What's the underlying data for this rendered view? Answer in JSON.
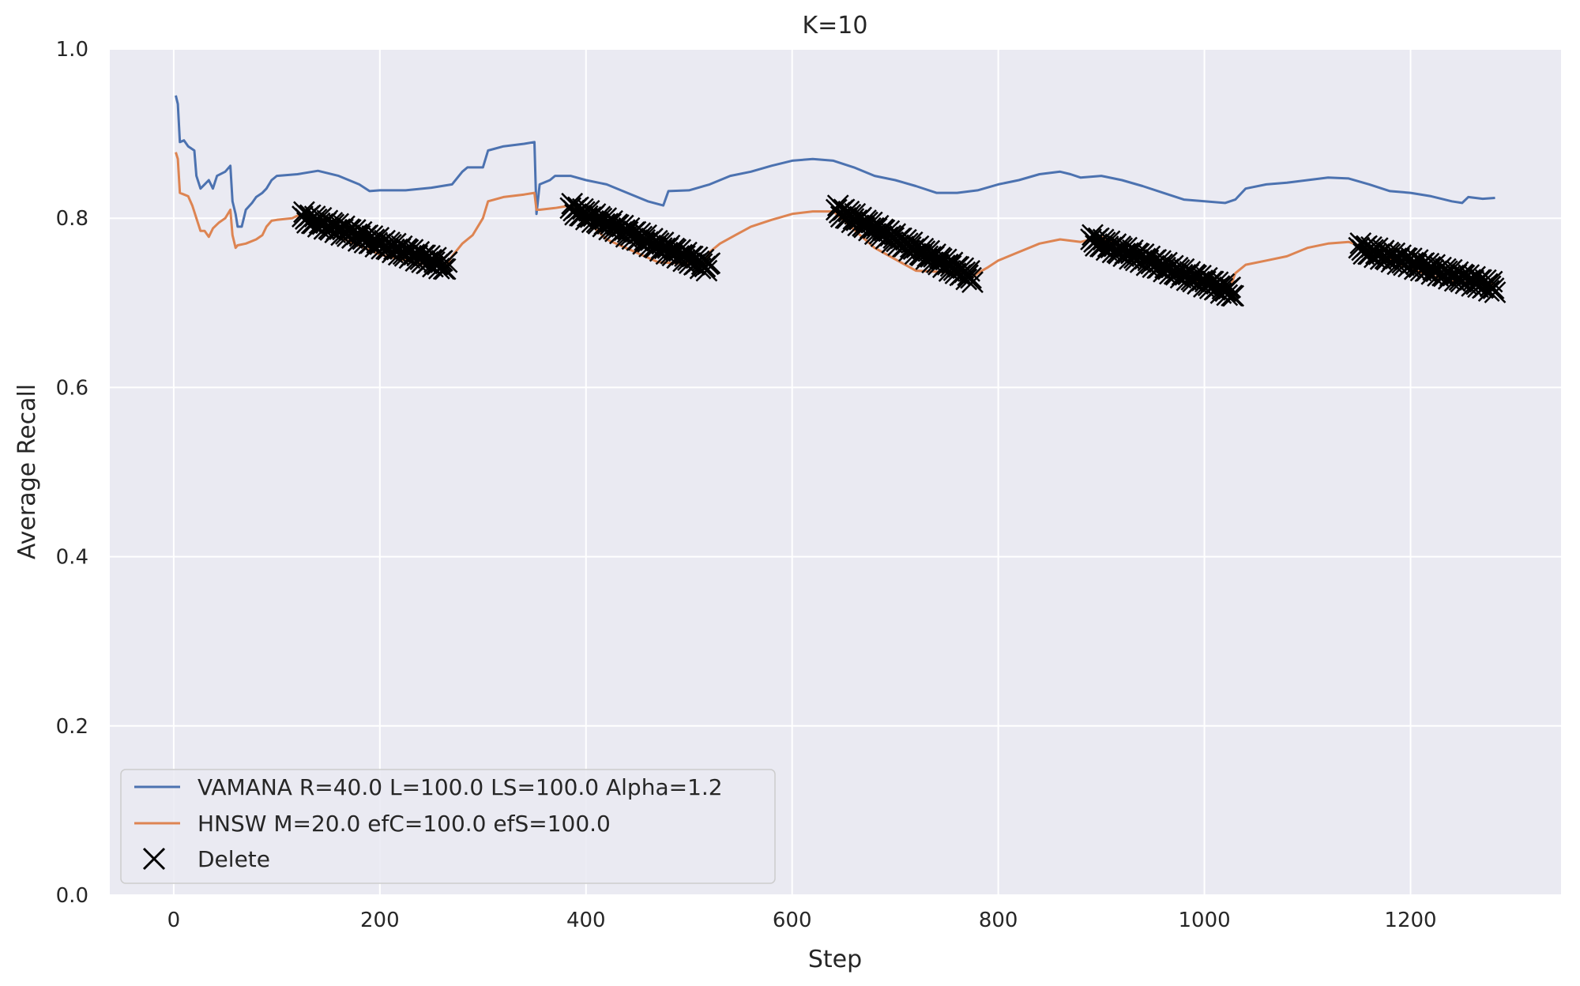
{
  "chart_data": {
    "type": "line",
    "title": "K=10",
    "xlabel": "Step",
    "ylabel": "Average Recall",
    "xlim": [
      -62,
      1346
    ],
    "ylim": [
      0.0,
      1.0
    ],
    "xticks": [
      0,
      200,
      400,
      600,
      800,
      1000,
      1200
    ],
    "yticks": [
      0.0,
      0.2,
      0.4,
      0.6,
      0.8,
      1.0
    ],
    "xtick_labels": [
      "0",
      "200",
      "400",
      "600",
      "800",
      "1000",
      "1200"
    ],
    "ytick_labels": [
      "0.0",
      "0.2",
      "0.4",
      "0.6",
      "0.8",
      "1.0"
    ],
    "grid": true,
    "background": "#eaeaf2",
    "legend_position": "lower-left",
    "series": [
      {
        "name": "VAMANA R=40.0 L=100.0 LS=100.0 Alpha=1.2",
        "color": "#4c72b0",
        "points": [
          [
            2,
            0.945
          ],
          [
            4,
            0.935
          ],
          [
            6,
            0.89
          ],
          [
            10,
            0.892
          ],
          [
            14,
            0.885
          ],
          [
            20,
            0.88
          ],
          [
            22,
            0.85
          ],
          [
            26,
            0.835
          ],
          [
            30,
            0.84
          ],
          [
            34,
            0.845
          ],
          [
            38,
            0.835
          ],
          [
            42,
            0.85
          ],
          [
            50,
            0.855
          ],
          [
            55,
            0.862
          ],
          [
            57,
            0.82
          ],
          [
            60,
            0.805
          ],
          [
            62,
            0.79
          ],
          [
            66,
            0.79
          ],
          [
            70,
            0.81
          ],
          [
            76,
            0.818
          ],
          [
            80,
            0.825
          ],
          [
            86,
            0.83
          ],
          [
            90,
            0.835
          ],
          [
            95,
            0.845
          ],
          [
            100,
            0.85
          ],
          [
            120,
            0.852
          ],
          [
            140,
            0.856
          ],
          [
            160,
            0.85
          ],
          [
            180,
            0.84
          ],
          [
            190,
            0.832
          ],
          [
            200,
            0.833
          ],
          [
            225,
            0.833
          ],
          [
            250,
            0.836
          ],
          [
            270,
            0.84
          ],
          [
            280,
            0.855
          ],
          [
            285,
            0.86
          ],
          [
            300,
            0.86
          ],
          [
            305,
            0.88
          ],
          [
            320,
            0.885
          ],
          [
            340,
            0.888
          ],
          [
            350,
            0.89
          ],
          [
            352,
            0.805
          ],
          [
            355,
            0.84
          ],
          [
            365,
            0.845
          ],
          [
            370,
            0.85
          ],
          [
            385,
            0.85
          ],
          [
            400,
            0.845
          ],
          [
            420,
            0.84
          ],
          [
            440,
            0.83
          ],
          [
            460,
            0.82
          ],
          [
            475,
            0.815
          ],
          [
            480,
            0.832
          ],
          [
            500,
            0.833
          ],
          [
            520,
            0.84
          ],
          [
            540,
            0.85
          ],
          [
            560,
            0.855
          ],
          [
            580,
            0.862
          ],
          [
            600,
            0.868
          ],
          [
            620,
            0.87
          ],
          [
            640,
            0.868
          ],
          [
            660,
            0.86
          ],
          [
            680,
            0.85
          ],
          [
            700,
            0.845
          ],
          [
            720,
            0.838
          ],
          [
            740,
            0.83
          ],
          [
            760,
            0.83
          ],
          [
            780,
            0.833
          ],
          [
            800,
            0.84
          ],
          [
            820,
            0.845
          ],
          [
            840,
            0.852
          ],
          [
            860,
            0.855
          ],
          [
            870,
            0.852
          ],
          [
            880,
            0.848
          ],
          [
            900,
            0.85
          ],
          [
            920,
            0.845
          ],
          [
            940,
            0.838
          ],
          [
            960,
            0.83
          ],
          [
            980,
            0.822
          ],
          [
            1000,
            0.82
          ],
          [
            1020,
            0.818
          ],
          [
            1030,
            0.822
          ],
          [
            1040,
            0.835
          ],
          [
            1060,
            0.84
          ],
          [
            1080,
            0.842
          ],
          [
            1100,
            0.845
          ],
          [
            1120,
            0.848
          ],
          [
            1140,
            0.847
          ],
          [
            1160,
            0.84
          ],
          [
            1180,
            0.832
          ],
          [
            1200,
            0.83
          ],
          [
            1220,
            0.826
          ],
          [
            1240,
            0.82
          ],
          [
            1250,
            0.818
          ],
          [
            1256,
            0.825
          ],
          [
            1270,
            0.823
          ],
          [
            1282,
            0.824
          ]
        ]
      },
      {
        "name": "HNSW M=20.0 efC=100.0 efS=100.0",
        "color": "#dd8452",
        "points": [
          [
            2,
            0.878
          ],
          [
            4,
            0.87
          ],
          [
            6,
            0.83
          ],
          [
            10,
            0.828
          ],
          [
            14,
            0.826
          ],
          [
            18,
            0.815
          ],
          [
            22,
            0.8
          ],
          [
            26,
            0.785
          ],
          [
            30,
            0.785
          ],
          [
            34,
            0.778
          ],
          [
            38,
            0.788
          ],
          [
            44,
            0.795
          ],
          [
            50,
            0.8
          ],
          [
            55,
            0.81
          ],
          [
            57,
            0.78
          ],
          [
            60,
            0.765
          ],
          [
            62,
            0.768
          ],
          [
            70,
            0.77
          ],
          [
            80,
            0.775
          ],
          [
            86,
            0.78
          ],
          [
            90,
            0.79
          ],
          [
            95,
            0.797
          ],
          [
            100,
            0.798
          ],
          [
            115,
            0.8
          ],
          [
            120,
            0.803
          ],
          [
            130,
            0.805
          ],
          [
            160,
            0.778
          ],
          [
            200,
            0.757
          ],
          [
            240,
            0.746
          ],
          [
            265,
            0.746
          ],
          [
            270,
            0.755
          ],
          [
            280,
            0.77
          ],
          [
            290,
            0.78
          ],
          [
            300,
            0.8
          ],
          [
            305,
            0.82
          ],
          [
            320,
            0.825
          ],
          [
            340,
            0.828
          ],
          [
            350,
            0.83
          ],
          [
            352,
            0.81
          ],
          [
            355,
            0.81
          ],
          [
            370,
            0.812
          ],
          [
            385,
            0.815
          ],
          [
            420,
            0.775
          ],
          [
            470,
            0.748
          ],
          [
            515,
            0.745
          ],
          [
            520,
            0.76
          ],
          [
            530,
            0.77
          ],
          [
            545,
            0.78
          ],
          [
            560,
            0.79
          ],
          [
            580,
            0.798
          ],
          [
            600,
            0.805
          ],
          [
            620,
            0.808
          ],
          [
            640,
            0.808
          ],
          [
            680,
            0.765
          ],
          [
            720,
            0.738
          ],
          [
            770,
            0.735
          ],
          [
            775,
            0.73
          ],
          [
            780,
            0.735
          ],
          [
            790,
            0.742
          ],
          [
            800,
            0.75
          ],
          [
            820,
            0.76
          ],
          [
            840,
            0.77
          ],
          [
            860,
            0.775
          ],
          [
            880,
            0.772
          ],
          [
            900,
            0.778
          ],
          [
            950,
            0.745
          ],
          [
            1000,
            0.722
          ],
          [
            1025,
            0.718
          ],
          [
            1030,
            0.735
          ],
          [
            1040,
            0.745
          ],
          [
            1060,
            0.75
          ],
          [
            1080,
            0.755
          ],
          [
            1100,
            0.765
          ],
          [
            1120,
            0.77
          ],
          [
            1140,
            0.772
          ],
          [
            1150,
            0.768
          ],
          [
            1200,
            0.74
          ],
          [
            1240,
            0.725
          ],
          [
            1282,
            0.722
          ]
        ]
      }
    ],
    "delete_series": {
      "name": "Delete",
      "marker": "x",
      "color": "#000000",
      "ranges": [
        {
          "x0": 125,
          "x1": 265,
          "y0": 0.802,
          "y1": 0.743
        },
        {
          "x0": 385,
          "x1": 520,
          "y0": 0.812,
          "y1": 0.742
        },
        {
          "x0": 643,
          "x1": 775,
          "y0": 0.81,
          "y1": 0.73
        },
        {
          "x0": 890,
          "x1": 1028,
          "y0": 0.775,
          "y1": 0.712
        },
        {
          "x0": 1150,
          "x1": 1282,
          "y0": 0.765,
          "y1": 0.718
        }
      ],
      "step": 1.5
    }
  }
}
